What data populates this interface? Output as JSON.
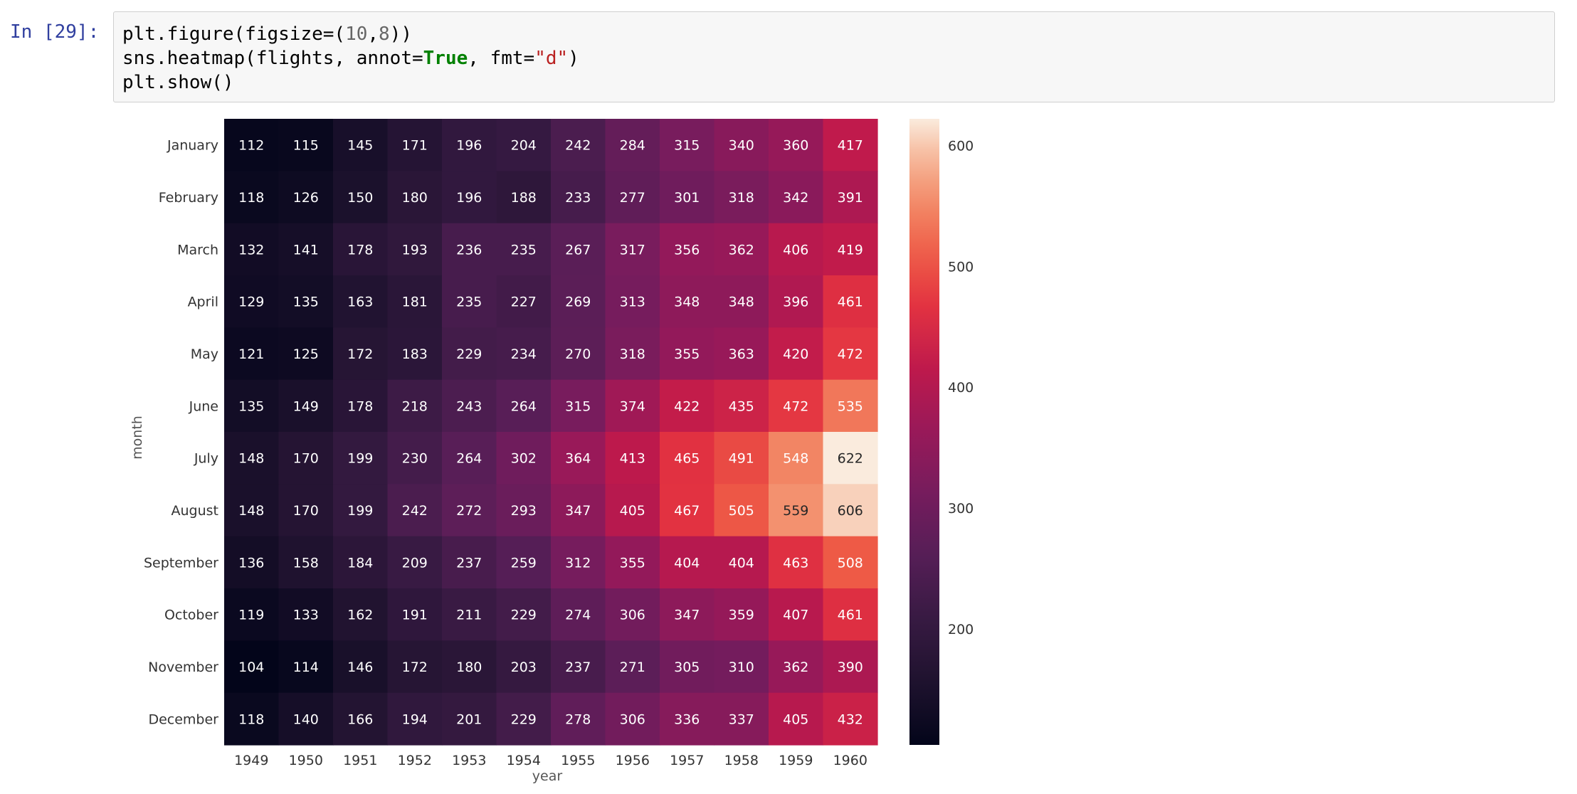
{
  "cell": {
    "prompt": "In [29]:",
    "code": {
      "line1": {
        "a": "plt.figure(figsize=(",
        "n1": "10",
        "c": ",",
        "n2": "8",
        "d": "))"
      },
      "line2": {
        "a": "sns.heatmap(flights, annot=",
        "kw": "True",
        "b": ", fmt=",
        "str": "\"d\"",
        "c": ")"
      },
      "line3": {
        "a": "plt.show()"
      }
    }
  },
  "chart_data": {
    "type": "heatmap",
    "title": "",
    "xlabel": "year",
    "ylabel": "month",
    "x": [
      "1949",
      "1950",
      "1951",
      "1952",
      "1953",
      "1954",
      "1955",
      "1956",
      "1957",
      "1958",
      "1959",
      "1960"
    ],
    "y": [
      "January",
      "February",
      "March",
      "April",
      "May",
      "June",
      "July",
      "August",
      "September",
      "October",
      "November",
      "December"
    ],
    "values": [
      [
        112,
        115,
        145,
        171,
        196,
        204,
        242,
        284,
        315,
        340,
        360,
        417
      ],
      [
        118,
        126,
        150,
        180,
        196,
        188,
        233,
        277,
        301,
        318,
        342,
        391
      ],
      [
        132,
        141,
        178,
        193,
        236,
        235,
        267,
        317,
        356,
        362,
        406,
        419
      ],
      [
        129,
        135,
        163,
        181,
        235,
        227,
        269,
        313,
        348,
        348,
        396,
        461
      ],
      [
        121,
        125,
        172,
        183,
        229,
        234,
        270,
        318,
        355,
        363,
        420,
        472
      ],
      [
        135,
        149,
        178,
        218,
        243,
        264,
        315,
        374,
        422,
        435,
        472,
        535
      ],
      [
        148,
        170,
        199,
        230,
        264,
        302,
        364,
        413,
        465,
        491,
        548,
        622
      ],
      [
        148,
        170,
        199,
        242,
        272,
        293,
        347,
        405,
        467,
        505,
        559,
        606
      ],
      [
        136,
        158,
        184,
        209,
        237,
        259,
        312,
        355,
        404,
        404,
        463,
        508
      ],
      [
        119,
        133,
        162,
        191,
        211,
        229,
        274,
        306,
        347,
        359,
        407,
        461
      ],
      [
        104,
        114,
        146,
        172,
        180,
        203,
        237,
        271,
        305,
        310,
        362,
        390
      ],
      [
        118,
        140,
        166,
        194,
        201,
        229,
        278,
        306,
        336,
        337,
        405,
        432
      ]
    ],
    "annot": true,
    "fmt": "d",
    "colormap": "rocket",
    "vmin": 104,
    "vmax": 622,
    "colorbar_ticks": [
      200,
      300,
      400,
      500,
      600
    ],
    "grid": false,
    "legend": "colorbar-right"
  }
}
